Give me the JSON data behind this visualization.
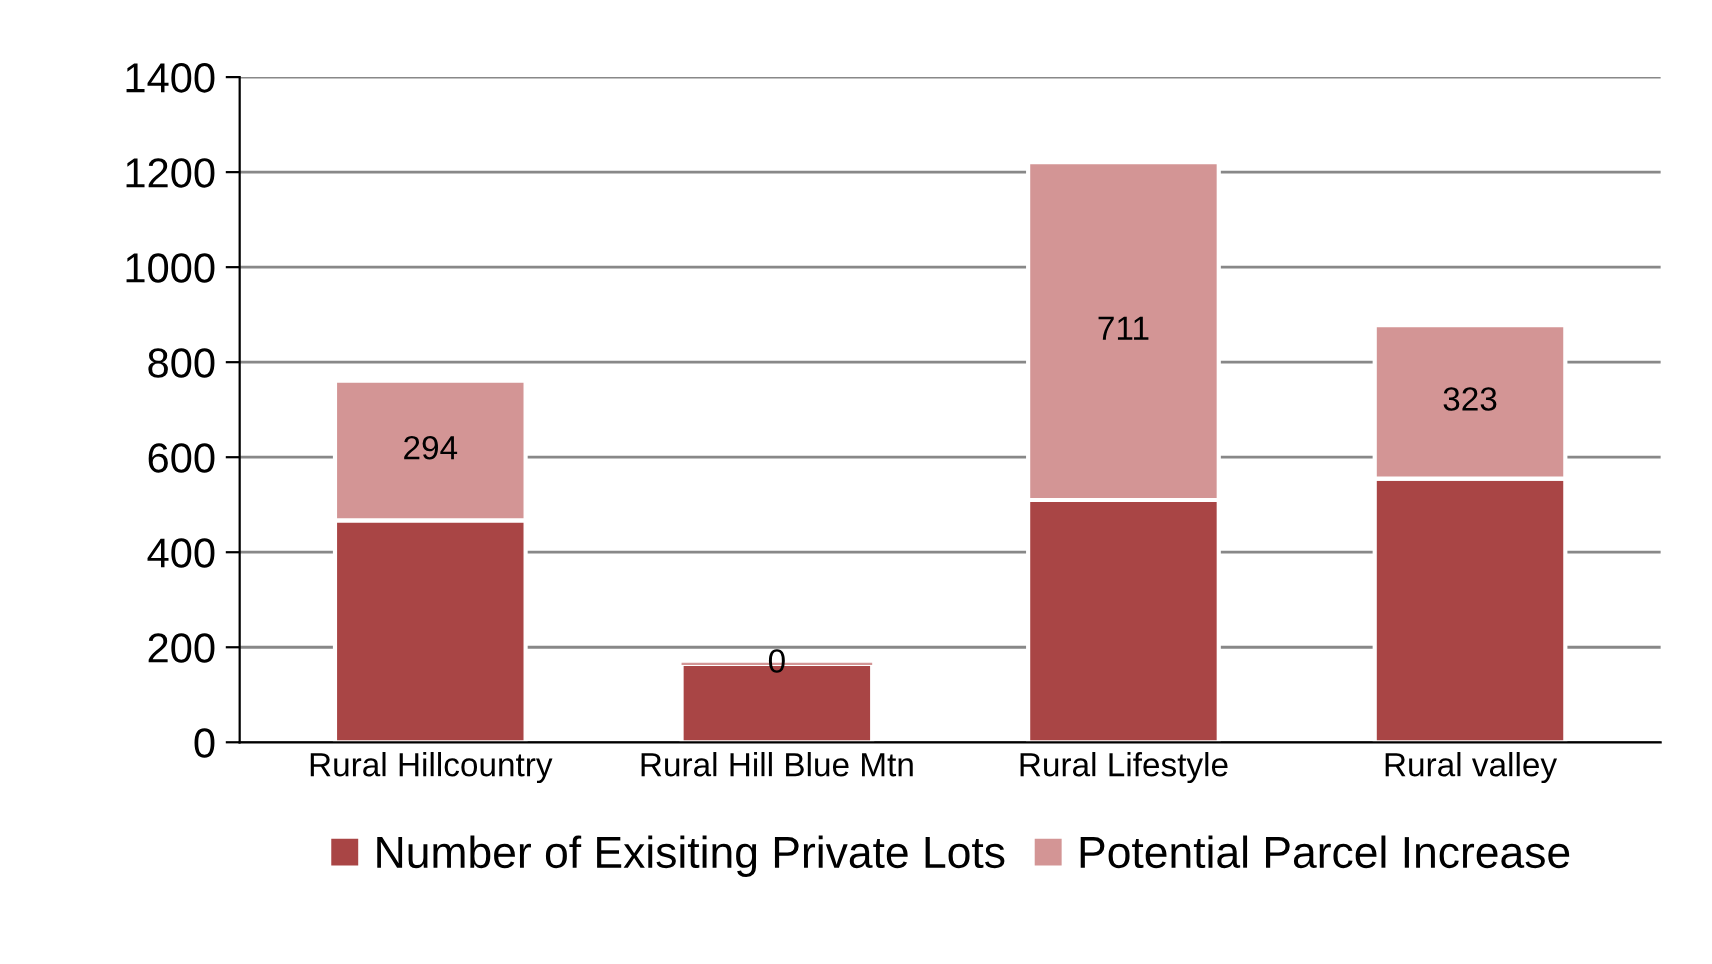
{
  "chart_data": {
    "type": "bar",
    "stacked": true,
    "categories": [
      "Rural Hillcountry",
      "Rural Hill Blue Mtn",
      "Rural Lifestyle",
      "Rural valley"
    ],
    "series": [
      {
        "name": "Number of Exisiting Private Lots",
        "color": "#a94545",
        "values": [
          467,
          165,
          510,
          555
        ]
      },
      {
        "name": "Potential Parcel Increase",
        "color": "#d39595",
        "values": [
          294,
          0,
          711,
          323
        ],
        "value_labels": [
          "294",
          "0",
          "711",
          "323"
        ]
      }
    ],
    "ylim": [
      0,
      1400
    ],
    "yticks": [
      0,
      200,
      400,
      600,
      800,
      1000,
      1200,
      1400
    ],
    "grid": "y",
    "legend": "bottom"
  }
}
